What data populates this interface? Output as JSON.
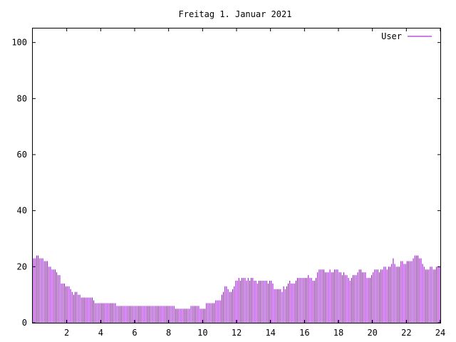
{
  "chart_data": {
    "type": "bar",
    "title": "Freitag 1. Januar 2021",
    "xlabel": "",
    "ylabel": "",
    "xlim": [
      0,
      24
    ],
    "ylim": [
      0,
      105
    ],
    "x_ticks": [
      2,
      4,
      6,
      8,
      10,
      12,
      14,
      16,
      18,
      20,
      22,
      24
    ],
    "y_ticks": [
      0,
      20,
      40,
      60,
      80,
      100
    ],
    "grid": false,
    "legend_position": "top-right",
    "series": [
      {
        "name": "User",
        "color": "#9400d3",
        "bin_hours": 0.0833,
        "values": [
          23,
          23,
          24,
          24,
          23,
          23,
          23,
          22,
          22,
          22,
          20,
          20,
          19,
          19,
          19,
          18,
          17,
          17,
          14,
          14,
          14,
          13,
          13,
          13,
          12,
          11,
          10,
          11,
          11,
          10,
          10,
          9,
          9,
          9,
          9,
          9,
          9,
          9,
          9,
          8,
          7,
          7,
          7,
          7,
          7,
          7,
          7,
          7,
          7,
          7,
          7,
          7,
          7,
          7,
          6,
          6,
          6,
          6,
          6,
          6,
          6,
          6,
          6,
          6,
          6,
          6,
          6,
          6,
          6,
          6,
          6,
          6,
          6,
          6,
          6,
          6,
          6,
          6,
          6,
          6,
          6,
          6,
          6,
          6,
          6,
          6,
          6,
          6,
          6,
          6,
          6,
          6,
          5,
          5,
          5,
          5,
          5,
          5,
          5,
          5,
          5,
          5,
          6,
          6,
          6,
          6,
          6,
          6,
          5,
          5,
          5,
          5,
          7,
          7,
          7,
          7,
          7,
          7,
          8,
          8,
          8,
          8,
          10,
          11,
          13,
          13,
          12,
          11,
          11,
          12,
          13,
          15,
          15,
          16,
          15,
          16,
          16,
          16,
          15,
          16,
          15,
          16,
          16,
          15,
          15,
          14,
          15,
          15,
          15,
          15,
          15,
          15,
          14,
          15,
          15,
          14,
          12,
          12,
          12,
          12,
          12,
          11,
          13,
          12,
          13,
          14,
          15,
          14,
          14,
          14,
          15,
          16,
          16,
          16,
          16,
          16,
          16,
          16,
          17,
          16,
          16,
          15,
          15,
          16,
          18,
          19,
          19,
          19,
          19,
          18,
          18,
          18,
          19,
          18,
          18,
          19,
          19,
          19,
          18,
          18,
          17,
          18,
          17,
          17,
          16,
          15,
          16,
          17,
          17,
          17,
          18,
          19,
          19,
          18,
          18,
          18,
          16,
          16,
          16,
          17,
          18,
          19,
          19,
          19,
          18,
          19,
          19,
          20,
          20,
          19,
          20,
          20,
          21,
          23,
          21,
          20,
          20,
          20,
          22,
          22,
          21,
          21,
          22,
          22,
          22,
          22,
          23,
          24,
          24,
          24,
          23,
          23,
          21,
          20,
          19,
          19,
          19,
          20,
          20,
          19,
          19,
          20,
          20,
          20
        ]
      }
    ]
  }
}
